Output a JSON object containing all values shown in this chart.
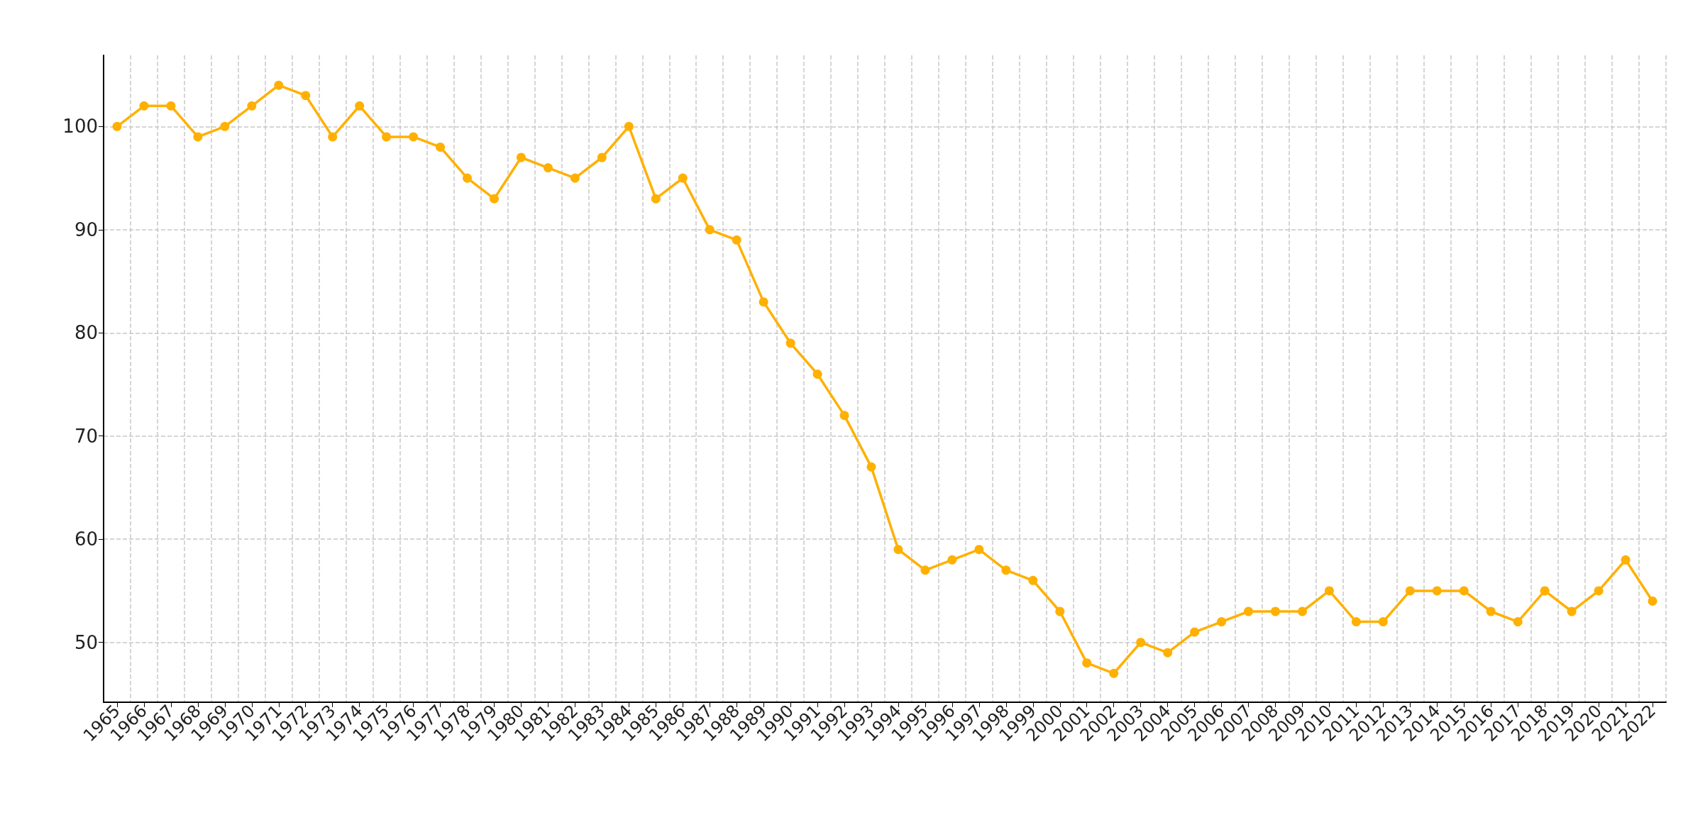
{
  "chart_data": {
    "type": "line",
    "categories": [
      "1965",
      "1966",
      "1967",
      "1968",
      "1969",
      "1970",
      "1971",
      "1972",
      "1973",
      "1974",
      "1975",
      "1976",
      "1977",
      "1978",
      "1979",
      "1980",
      "1981",
      "1982",
      "1983",
      "1984",
      "1985",
      "1986",
      "1987",
      "1988",
      "1989",
      "1990",
      "1991",
      "1992",
      "1993",
      "1994",
      "1995",
      "1996",
      "1997",
      "1998",
      "1999",
      "2000",
      "2001",
      "2002",
      "2003",
      "2004",
      "2005",
      "2006",
      "2007",
      "2008",
      "2009",
      "2010",
      "2011",
      "2012",
      "2013",
      "2014",
      "2015",
      "2016",
      "2017",
      "2018",
      "2019",
      "2020",
      "2021",
      "2022"
    ],
    "series": [
      {
        "color": "#ffb000",
        "values": [
          100,
          102,
          102,
          99,
          100,
          102,
          104,
          103,
          99,
          102,
          99,
          99,
          98,
          95,
          93,
          97,
          96,
          95,
          97,
          100,
          93,
          95,
          90,
          89,
          83,
          79,
          76,
          72,
          67,
          59,
          57,
          58,
          59,
          57,
          56,
          53,
          48,
          47,
          50,
          49,
          51,
          52,
          53,
          53,
          53,
          55,
          52,
          52,
          55,
          55,
          55,
          53,
          52,
          55,
          53,
          55,
          58,
          54
        ]
      }
    ],
    "ylim": [
      44.2,
      106.9
    ],
    "yticks": [
      50,
      60,
      70,
      80,
      90,
      100
    ],
    "grid": true,
    "marker": "circle",
    "line_style": "solid"
  }
}
